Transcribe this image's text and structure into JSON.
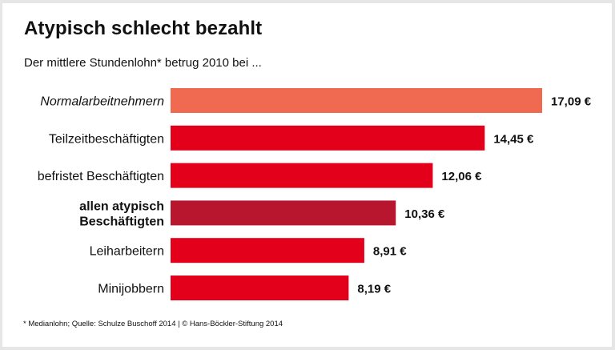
{
  "title": "Atypisch schlecht bezahlt",
  "subtitle": "Der mittlere Stundenlohn* betrug 2010 bei ...",
  "footnote": "* Medianlohn; Quelle: Schulze Buschoff 2014 | © Hans-Böckler-Stiftung 2014",
  "chart_data": {
    "type": "bar",
    "orientation": "horizontal",
    "title": "Atypisch schlecht bezahlt",
    "subtitle": "Der mittlere Stundenlohn* betrug 2010 bei ...",
    "xlabel": "",
    "ylabel": "",
    "unit": "€",
    "grid": false,
    "legend": "none",
    "categories": [
      "Normalarbeitnehmern",
      "Teilzeitbeschäftigten",
      "befristet Beschäftigten",
      "allen atypisch Beschäftigten",
      "Leiharbeitern",
      "Minijobbern"
    ],
    "category_lines": [
      [
        "Normalarbeitnehmern"
      ],
      [
        "Teilzeitbeschäftigten"
      ],
      [
        "befristet Beschäftigten"
      ],
      [
        "allen atypisch",
        "Beschäftigten"
      ],
      [
        "Leiharbeitern"
      ],
      [
        "Minijobbern"
      ]
    ],
    "category_styles": [
      "italic",
      "normal",
      "normal",
      "bold",
      "normal",
      "normal"
    ],
    "values": [
      17.09,
      14.45,
      12.06,
      10.36,
      8.91,
      8.19
    ],
    "value_labels": [
      "17,09 €",
      "14,45 €",
      "12,06 €",
      "10,36 €",
      "8,91 €",
      "8,19 €"
    ],
    "colors": [
      "#ef6a50",
      "#e2001a",
      "#e2001a",
      "#b8152e",
      "#e2001a",
      "#e2001a"
    ],
    "xlim": [
      0,
      17.09
    ]
  }
}
